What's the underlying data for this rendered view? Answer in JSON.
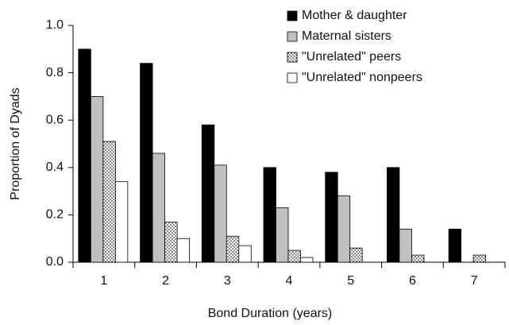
{
  "chart_data": {
    "type": "bar",
    "xlabel": "Bond Duration (years)",
    "ylabel": "Proportion of Dyads",
    "categories": [
      "1",
      "2",
      "3",
      "4",
      "5",
      "6",
      "7"
    ],
    "series": [
      {
        "name": "Mother & daughter",
        "color": "#000000",
        "values": [
          0.9,
          0.84,
          0.58,
          0.4,
          0.38,
          0.4,
          0.14
        ]
      },
      {
        "name": "Maternal sisters",
        "color": "#c0c0c0",
        "values": [
          0.7,
          0.46,
          0.41,
          0.23,
          0.28,
          0.14,
          0
        ]
      },
      {
        "name": "\"Unrelated\" peers",
        "color": "#ffffff",
        "pattern": "dots",
        "values": [
          0.51,
          0.17,
          0.11,
          0.05,
          0.06,
          0.03,
          0.03
        ]
      },
      {
        "name": "\"Unrelated\" nonpeers",
        "color": "#ffffff",
        "values": [
          0.34,
          0.1,
          0.07,
          0.02,
          0,
          0,
          0
        ]
      }
    ],
    "ylim": [
      0,
      1
    ],
    "yticks": [
      {
        "value": 0,
        "label": "0.0"
      },
      0.2,
      0.4,
      0.6,
      0.8,
      {
        "value": 1,
        "label": "1.0"
      }
    ],
    "legend": "upper right",
    "grid": false
  }
}
